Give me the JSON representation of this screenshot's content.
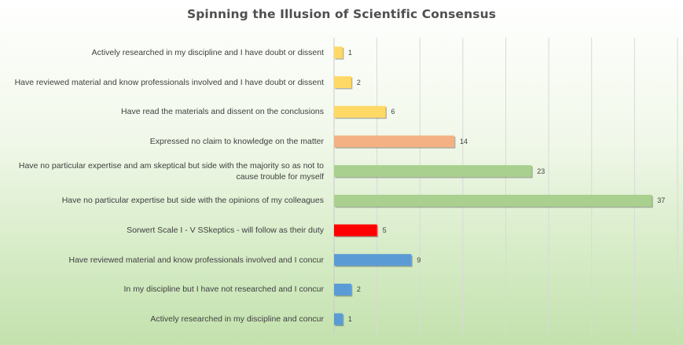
{
  "chart_data": {
    "type": "bar",
    "orientation": "horizontal",
    "title": "Spinning the Illusion of Scientific Consensus",
    "xlabel": "",
    "ylabel": "",
    "xlim": [
      0,
      40
    ],
    "grid": true,
    "legend": "none",
    "categories": [
      "Actively researched in my discipline and I have doubt or dissent",
      "Have reviewed material and know professionals involved and I have doubt or dissent",
      "Have read the materials and dissent on the conclusions",
      "Expressed no claim to knowledge on the matter",
      "Have no particular expertise and am skeptical but side with the majority so as not to cause trouble for myself",
      "Have no particular expertise but side with the opinions of my colleagues",
      "Sorwert Scale I - V SSkeptics - will follow as their duty",
      "Have reviewed material and know professionals involved and I concur",
      "In my discipline but I have not researched and I concur",
      "Actively researched in my discipline and concur"
    ],
    "values": [
      1,
      2,
      6,
      14,
      23,
      37,
      5,
      9,
      2,
      1
    ],
    "colors": [
      "#ffd966",
      "#ffd966",
      "#ffd966",
      "#f4b183",
      "#a9d08e",
      "#a9d08e",
      "#ff0000",
      "#5b9bd5",
      "#5b9bd5",
      "#5b9bd5"
    ],
    "data_labels": [
      "1",
      "2",
      "6",
      "14",
      "23",
      "37",
      "5",
      "9",
      "2",
      "1"
    ]
  }
}
